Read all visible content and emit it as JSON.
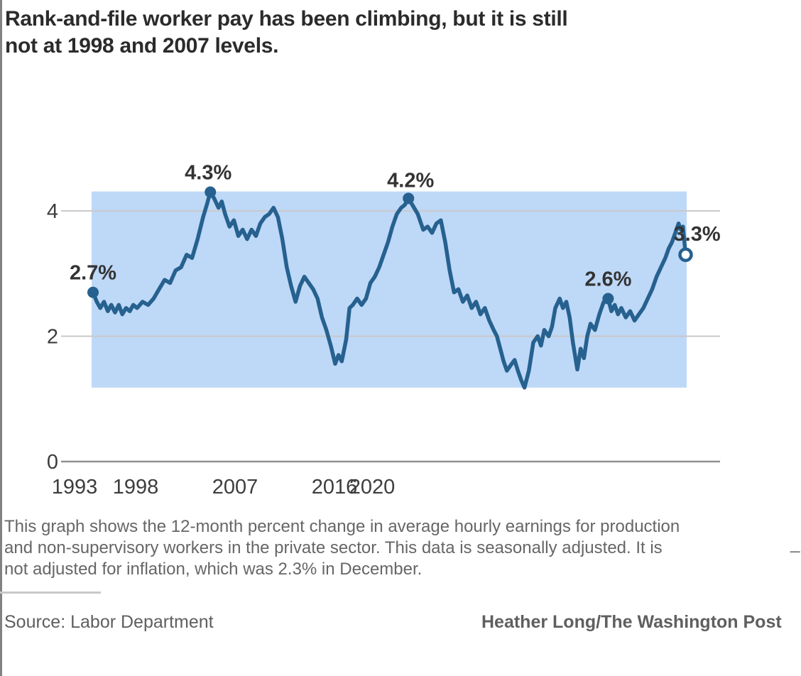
{
  "title": {
    "line1": "Rank-and-file worker pay has been climbing, but it is still",
    "line2": "not at 1998 and 2007 levels."
  },
  "chart_data": {
    "type": "line",
    "series_name": "12-month percent change in average hourly earnings",
    "x_ticks": [
      "1993",
      "1998",
      "2007",
      "2016",
      "2020"
    ],
    "y_ticks": [
      "4",
      "2",
      "0"
    ],
    "y_tick_values": [
      4,
      2,
      0
    ],
    "xlim": [
      1993,
      2020.1
    ],
    "ylim": [
      0,
      4.6
    ],
    "grid": "horizontal-only",
    "band": {
      "min": 1.18,
      "max": 4.31,
      "color": "#bed8f7"
    },
    "line_color": "#26618f",
    "gridline_color": "#c9c9c9",
    "axis_color": "#8f8f8f",
    "annotations": [
      {
        "label": "2.7%",
        "x": 1993.0,
        "y": 2.7,
        "marker": "filled"
      },
      {
        "label": "4.3%",
        "x": 1998.33,
        "y": 4.3,
        "marker": "filled"
      },
      {
        "label": "4.2%",
        "x": 2007.33,
        "y": 4.2,
        "marker": "filled"
      },
      {
        "label": "2.6%",
        "x": 2016.4,
        "y": 2.6,
        "marker": "filled"
      },
      {
        "label": "3.3%",
        "x": 2019.92,
        "y": 3.3,
        "marker": "open"
      }
    ],
    "points": [
      [
        1993.0,
        2.7
      ],
      [
        1993.17,
        2.55
      ],
      [
        1993.33,
        2.45
      ],
      [
        1993.5,
        2.55
      ],
      [
        1993.67,
        2.4
      ],
      [
        1993.83,
        2.5
      ],
      [
        1994.0,
        2.38
      ],
      [
        1994.17,
        2.5
      ],
      [
        1994.33,
        2.35
      ],
      [
        1994.5,
        2.45
      ],
      [
        1994.67,
        2.4
      ],
      [
        1994.83,
        2.5
      ],
      [
        1995.0,
        2.45
      ],
      [
        1995.25,
        2.55
      ],
      [
        1995.5,
        2.5
      ],
      [
        1995.75,
        2.6
      ],
      [
        1996.0,
        2.75
      ],
      [
        1996.25,
        2.9
      ],
      [
        1996.5,
        2.85
      ],
      [
        1996.75,
        3.05
      ],
      [
        1997.0,
        3.1
      ],
      [
        1997.25,
        3.3
      ],
      [
        1997.5,
        3.25
      ],
      [
        1997.75,
        3.55
      ],
      [
        1998.0,
        3.9
      ],
      [
        1998.17,
        4.1
      ],
      [
        1998.33,
        4.3
      ],
      [
        1998.5,
        4.2
      ],
      [
        1998.7,
        4.05
      ],
      [
        1998.85,
        4.15
      ],
      [
        1999.0,
        3.95
      ],
      [
        1999.2,
        3.75
      ],
      [
        1999.4,
        3.85
      ],
      [
        1999.6,
        3.6
      ],
      [
        1999.8,
        3.7
      ],
      [
        2000.0,
        3.55
      ],
      [
        2000.2,
        3.7
      ],
      [
        2000.4,
        3.6
      ],
      [
        2000.6,
        3.8
      ],
      [
        2000.8,
        3.9
      ],
      [
        2001.0,
        3.95
      ],
      [
        2001.2,
        4.05
      ],
      [
        2001.4,
        3.9
      ],
      [
        2001.6,
        3.55
      ],
      [
        2001.8,
        3.1
      ],
      [
        2002.0,
        2.8
      ],
      [
        2002.2,
        2.55
      ],
      [
        2002.4,
        2.8
      ],
      [
        2002.6,
        2.95
      ],
      [
        2002.8,
        2.85
      ],
      [
        2003.0,
        2.75
      ],
      [
        2003.2,
        2.6
      ],
      [
        2003.4,
        2.3
      ],
      [
        2003.6,
        2.1
      ],
      [
        2003.8,
        1.85
      ],
      [
        2004.0,
        1.56
      ],
      [
        2004.15,
        1.7
      ],
      [
        2004.3,
        1.6
      ],
      [
        2004.5,
        1.95
      ],
      [
        2004.65,
        2.45
      ],
      [
        2004.8,
        2.5
      ],
      [
        2005.0,
        2.6
      ],
      [
        2005.2,
        2.5
      ],
      [
        2005.4,
        2.6
      ],
      [
        2005.6,
        2.85
      ],
      [
        2005.8,
        2.95
      ],
      [
        2006.0,
        3.1
      ],
      [
        2006.2,
        3.3
      ],
      [
        2006.4,
        3.5
      ],
      [
        2006.6,
        3.75
      ],
      [
        2006.8,
        3.95
      ],
      [
        2007.0,
        4.05
      ],
      [
        2007.17,
        4.1
      ],
      [
        2007.33,
        4.2
      ],
      [
        2007.5,
        4.1
      ],
      [
        2007.75,
        3.95
      ],
      [
        2008.0,
        3.7
      ],
      [
        2008.2,
        3.75
      ],
      [
        2008.4,
        3.65
      ],
      [
        2008.6,
        3.8
      ],
      [
        2008.8,
        3.85
      ],
      [
        2009.0,
        3.5
      ],
      [
        2009.2,
        3.05
      ],
      [
        2009.4,
        2.7
      ],
      [
        2009.6,
        2.75
      ],
      [
        2009.8,
        2.55
      ],
      [
        2010.0,
        2.65
      ],
      [
        2010.2,
        2.45
      ],
      [
        2010.4,
        2.55
      ],
      [
        2010.6,
        2.35
      ],
      [
        2010.8,
        2.45
      ],
      [
        2011.0,
        2.25
      ],
      [
        2011.2,
        2.1
      ],
      [
        2011.35,
        2.0
      ],
      [
        2011.5,
        1.8
      ],
      [
        2011.65,
        1.6
      ],
      [
        2011.8,
        1.45
      ],
      [
        2012.0,
        1.55
      ],
      [
        2012.15,
        1.62
      ],
      [
        2012.3,
        1.45
      ],
      [
        2012.45,
        1.3
      ],
      [
        2012.6,
        1.18
      ],
      [
        2012.8,
        1.45
      ],
      [
        2013.0,
        1.9
      ],
      [
        2013.2,
        2.0
      ],
      [
        2013.35,
        1.85
      ],
      [
        2013.5,
        2.1
      ],
      [
        2013.7,
        2.0
      ],
      [
        2013.85,
        2.15
      ],
      [
        2014.0,
        2.45
      ],
      [
        2014.2,
        2.6
      ],
      [
        2014.35,
        2.45
      ],
      [
        2014.5,
        2.55
      ],
      [
        2014.65,
        2.3
      ],
      [
        2014.8,
        1.9
      ],
      [
        2015.0,
        1.47
      ],
      [
        2015.15,
        1.8
      ],
      [
        2015.3,
        1.65
      ],
      [
        2015.45,
        2.0
      ],
      [
        2015.6,
        2.2
      ],
      [
        2015.8,
        2.1
      ],
      [
        2016.0,
        2.35
      ],
      [
        2016.2,
        2.55
      ],
      [
        2016.4,
        2.6
      ],
      [
        2016.55,
        2.4
      ],
      [
        2016.7,
        2.5
      ],
      [
        2016.85,
        2.35
      ],
      [
        2017.0,
        2.45
      ],
      [
        2017.2,
        2.3
      ],
      [
        2017.4,
        2.4
      ],
      [
        2017.6,
        2.25
      ],
      [
        2017.8,
        2.35
      ],
      [
        2018.0,
        2.45
      ],
      [
        2018.2,
        2.6
      ],
      [
        2018.4,
        2.75
      ],
      [
        2018.6,
        2.95
      ],
      [
        2018.8,
        3.1
      ],
      [
        2019.0,
        3.25
      ],
      [
        2019.15,
        3.4
      ],
      [
        2019.3,
        3.5
      ],
      [
        2019.45,
        3.65
      ],
      [
        2019.6,
        3.8
      ],
      [
        2019.7,
        3.7
      ],
      [
        2019.8,
        3.75
      ],
      [
        2019.92,
        3.3
      ]
    ]
  },
  "caption": {
    "line1": "This graph shows the 12-month percent change in average hourly earnings for production",
    "line2": "and non-supervisory workers in the private sector. This data is seasonally adjusted. It is",
    "line3": "not adjusted for inflation, which was 2.3% in December.",
    "cursor_artifact": "_"
  },
  "footer": {
    "source": "Source: Labor Department",
    "credit": "Heather Long/The Washington Post"
  }
}
